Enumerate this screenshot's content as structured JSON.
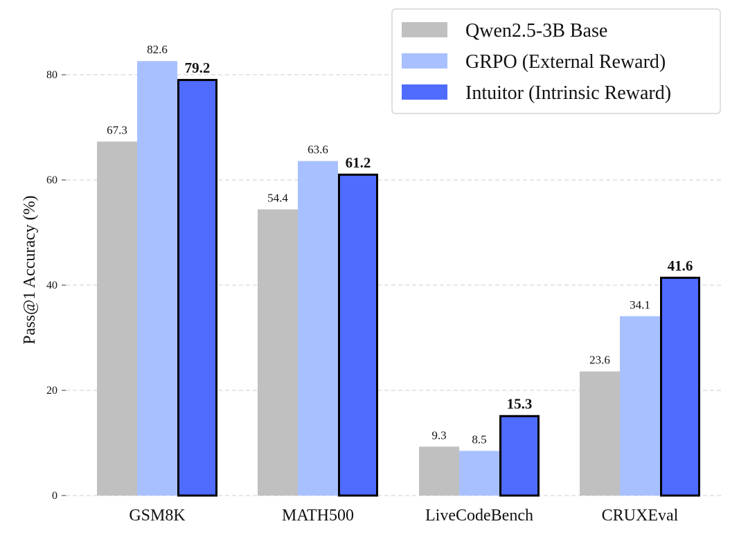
{
  "chart_data": {
    "type": "bar",
    "title": "",
    "xlabel": "",
    "ylabel": "Pass@1 Accuracy (%)",
    "ylim": [
      0,
      90
    ],
    "yticks": [
      0,
      20,
      40,
      60,
      80
    ],
    "grid": "horizontal dashed",
    "legend_placement": "top-right",
    "categories": [
      "GSM8K",
      "MATH500",
      "LiveCodeBench",
      "CRUXEval"
    ],
    "series": [
      {
        "name": "Qwen2.5-3B Base",
        "color": "#c0c0c0",
        "values": [
          67.3,
          54.4,
          9.3,
          23.6
        ],
        "labels": [
          "67.3",
          "54.4",
          "9.3",
          "23.6"
        ],
        "highlight": false
      },
      {
        "name": "GRPO (External Reward)",
        "color": "#a8c0ff",
        "values": [
          82.6,
          63.6,
          8.5,
          34.1
        ],
        "labels": [
          "82.6",
          "63.6",
          "8.5",
          "34.1"
        ],
        "highlight": false
      },
      {
        "name": "Intuitor (Intrinsic Reward)",
        "color": "#4f6cff",
        "values": [
          79.2,
          61.2,
          15.3,
          41.6
        ],
        "labels": [
          "79.2",
          "61.2",
          "15.3",
          "41.6"
        ],
        "highlight": true
      }
    ]
  }
}
